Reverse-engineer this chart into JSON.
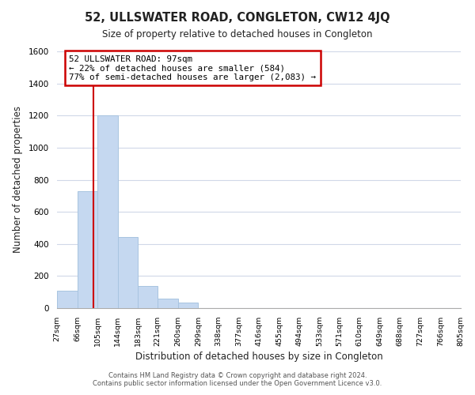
{
  "title": "52, ULLSWATER ROAD, CONGLETON, CW12 4JQ",
  "subtitle": "Size of property relative to detached houses in Congleton",
  "xlabel": "Distribution of detached houses by size in Congleton",
  "ylabel": "Number of detached properties",
  "bar_values": [
    110,
    730,
    1200,
    445,
    140,
    60,
    35,
    0,
    0,
    0,
    0,
    0,
    0,
    0,
    0,
    0,
    0,
    0,
    0,
    0
  ],
  "bin_edges": [
    27,
    66,
    105,
    144,
    183,
    221,
    260,
    299,
    338,
    377,
    416,
    455,
    494,
    533,
    571,
    610,
    649,
    688,
    727,
    766,
    805
  ],
  "tick_labels": [
    "27sqm",
    "66sqm",
    "105sqm",
    "144sqm",
    "183sqm",
    "221sqm",
    "260sqm",
    "299sqm",
    "338sqm",
    "377sqm",
    "416sqm",
    "455sqm",
    "494sqm",
    "533sqm",
    "571sqm",
    "610sqm",
    "649sqm",
    "688sqm",
    "727sqm",
    "766sqm",
    "805sqm"
  ],
  "bar_color": "#c5d8f0",
  "bar_edge_color": "#a8c4e0",
  "vline_x": 97,
  "vline_color": "#cc0000",
  "ylim": [
    0,
    1600
  ],
  "yticks": [
    0,
    200,
    400,
    600,
    800,
    1000,
    1200,
    1400,
    1600
  ],
  "annotation_title": "52 ULLSWATER ROAD: 97sqm",
  "annotation_line1": "← 22% of detached houses are smaller (584)",
  "annotation_line2": "77% of semi-detached houses are larger (2,083) →",
  "annotation_box_color": "#ffffff",
  "annotation_box_edge": "#cc0000",
  "footer_line1": "Contains HM Land Registry data © Crown copyright and database right 2024.",
  "footer_line2": "Contains public sector information licensed under the Open Government Licence v3.0.",
  "background_color": "#ffffff",
  "grid_color": "#d0d8e8"
}
